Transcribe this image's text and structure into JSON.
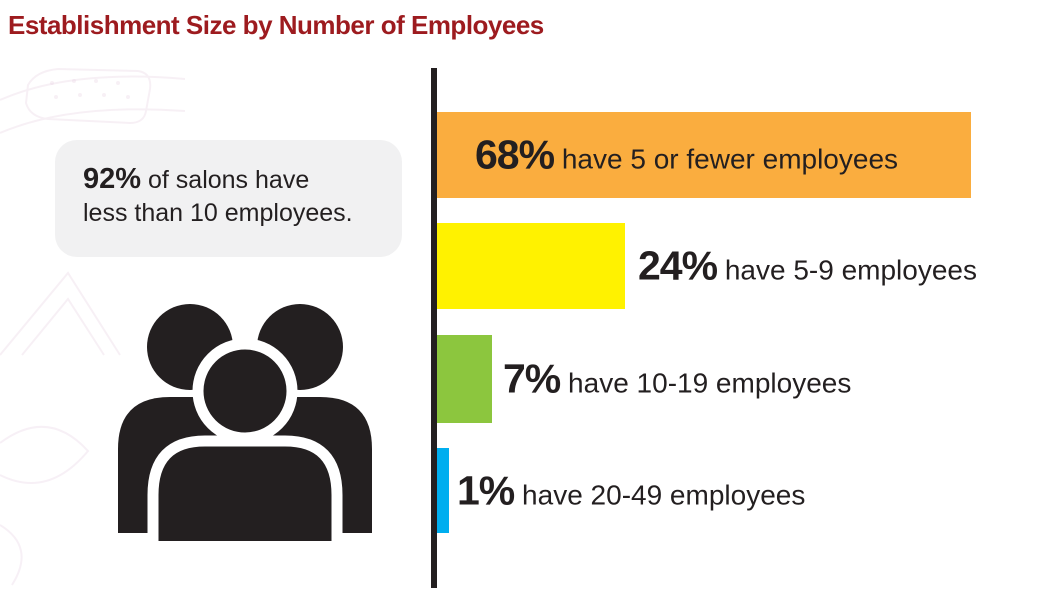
{
  "title": "Establishment Size by Number of Employees",
  "callout": {
    "value": "92%",
    "line1": "of salons have",
    "line2": "less than 10 employees."
  },
  "colors": {
    "title_red": "#9D1B1F",
    "axis_black": "#231F20",
    "callout_gray": "#F1F1F2",
    "bar_orange": "#FAAD3F",
    "bar_yellow": "#FFF200",
    "bar_green": "#8CC63E",
    "bar_blue": "#00AEEF"
  },
  "icons": {
    "people_group": "three-person group silhouette"
  },
  "chart_data": {
    "type": "bar",
    "orientation": "horizontal",
    "title": "Establishment Size by Number of Employees",
    "xlabel": "",
    "ylabel": "",
    "xlim": [
      0,
      100
    ],
    "grid": false,
    "categories": [
      "5 or fewer employees",
      "5-9 employees",
      "10-19 employees",
      "20-49 employees"
    ],
    "values": [
      68,
      24,
      7,
      1
    ],
    "bars": [
      {
        "value": "68%",
        "label": "have 5 or fewer employees",
        "percent": 68,
        "color": "#FAAD3F",
        "label_position": "inside"
      },
      {
        "value": "24%",
        "label": "have 5-9 employees",
        "percent": 24,
        "color": "#FFF200",
        "label_position": "right"
      },
      {
        "value": "7%",
        "label": "have 10-19 employees",
        "percent": 7,
        "color": "#8CC63E",
        "label_position": "right"
      },
      {
        "value": "1%",
        "label": "have 20-49 employees",
        "percent": 1,
        "color": "#00AEEF",
        "label_position": "right"
      }
    ]
  }
}
